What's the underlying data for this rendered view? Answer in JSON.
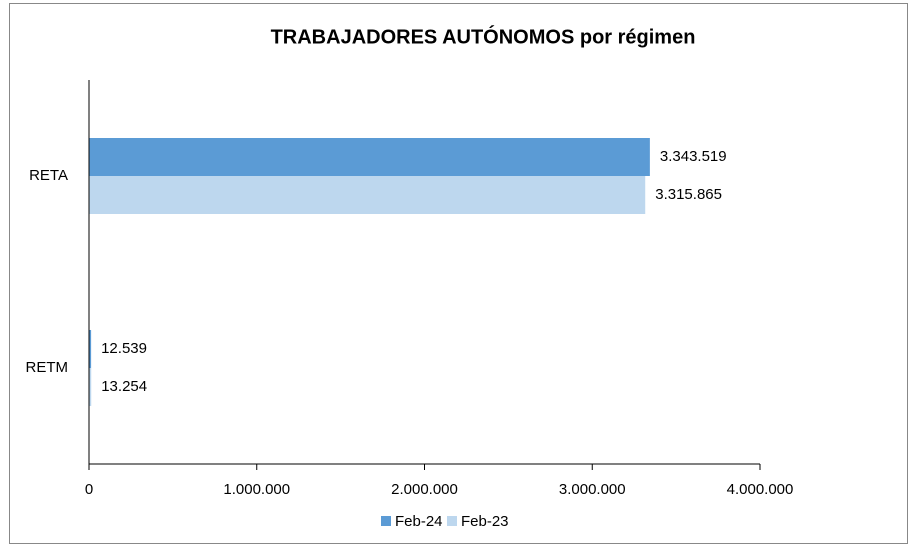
{
  "chart_data": {
    "type": "hbar",
    "title": "TRABAJADORES AUTÓNOMOS por régimen",
    "categories": [
      "RETA",
      "RETM"
    ],
    "series": [
      {
        "name": "Feb-24",
        "color": "#5b9bd5",
        "values": [
          3343519,
          12539
        ],
        "value_labels": [
          "3.343.519",
          "12.539"
        ]
      },
      {
        "name": "Feb-23",
        "color": "#bdd7ee",
        "values": [
          3315865,
          13254
        ],
        "value_labels": [
          "3.315.865",
          "13.254"
        ]
      }
    ],
    "xlim": [
      0,
      4000000
    ],
    "xticks": [
      0,
      {
        "value": 1000000,
        "label": "1.000.000"
      },
      {
        "value": 2000000,
        "label": "2.000.000"
      },
      {
        "value": 3000000,
        "label": "3.000.000"
      },
      {
        "value": 4000000,
        "label": "4.000.000"
      }
    ],
    "legend": "bottom"
  }
}
